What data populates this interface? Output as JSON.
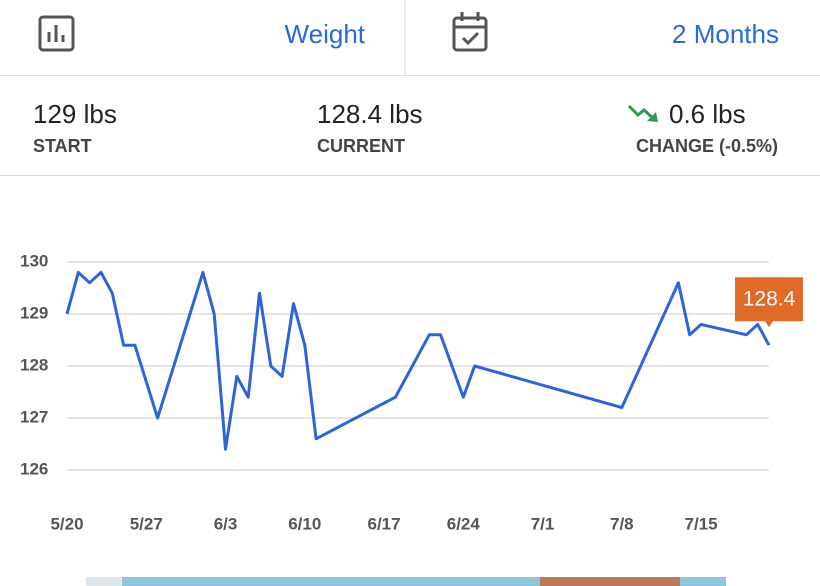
{
  "header": {
    "metric": "Weight",
    "range": "2 Months"
  },
  "stats": [
    {
      "value": "129 lbs",
      "label": "START"
    },
    {
      "value": "128.4 lbs",
      "label": "CURRENT"
    },
    {
      "value": "0.6 lbs",
      "label": "CHANGE (-0.5%)"
    }
  ],
  "chart_data": {
    "type": "line",
    "x": [
      "5/20",
      "5/21",
      "5/22",
      "5/23",
      "5/24",
      "5/25",
      "5/26",
      "5/28",
      "6/1",
      "6/2",
      "6/3",
      "6/4",
      "6/5",
      "6/6",
      "6/7",
      "6/8",
      "6/9",
      "6/10",
      "6/11",
      "6/18",
      "6/21",
      "6/22",
      "6/24",
      "6/25",
      "7/8",
      "7/13",
      "7/14",
      "7/15",
      "7/19",
      "7/20",
      "7/21"
    ],
    "series": [
      {
        "color": "#2f64d8",
        "values": [
          129.0,
          129.8,
          129.6,
          129.8,
          129.4,
          128.4,
          128.4,
          127.0,
          129.8,
          129.0,
          126.4,
          127.8,
          127.4,
          129.4,
          128.0,
          127.8,
          129.2,
          128.4,
          126.6,
          127.4,
          128.6,
          128.6,
          127.4,
          128.0,
          127.2,
          129.6,
          128.6,
          128.8,
          128.6,
          128.8,
          128.4
        ]
      }
    ],
    "xlim": [
      "5/20",
      "7/21"
    ],
    "xticks": [
      "5/20",
      "5/27",
      "6/3",
      "6/10",
      "6/17",
      "6/24",
      "7/1",
      "7/8",
      "7/15"
    ],
    "ylim": [
      126,
      130
    ],
    "yticks": [
      126,
      127,
      128,
      129,
      130
    ],
    "grid": true
  }
}
